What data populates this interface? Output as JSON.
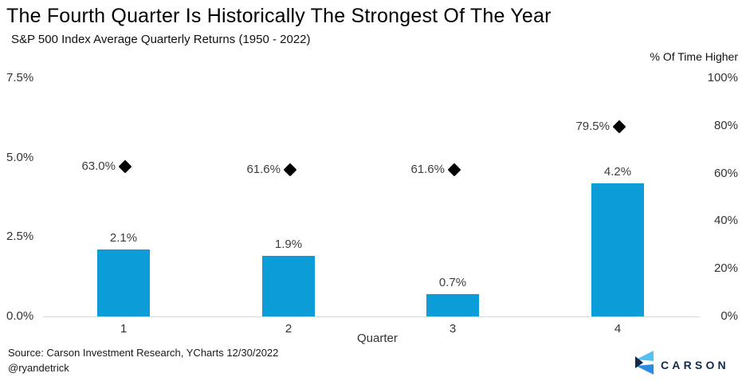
{
  "header": {
    "title": "The Fourth Quarter Is Historically The Strongest Of The Year",
    "subtitle": "S&P 500 Index Average Quarterly Returns (1950 - 2022)"
  },
  "chart_data": {
    "type": "bar",
    "title": "The Fourth Quarter Is Historically The Strongest Of The Year",
    "subtitle": "S&P 500 Index Average Quarterly Returns (1950 - 2022)",
    "categories": [
      "1",
      "2",
      "3",
      "4"
    ],
    "xlabel": "Quarter",
    "series": [
      {
        "name": "Average quarterly return",
        "type": "bar",
        "axis": "left",
        "values": [
          2.1,
          1.9,
          0.7,
          4.2
        ],
        "labels": [
          "2.1%",
          "1.9%",
          "0.7%",
          "4.2%"
        ]
      },
      {
        "name": "% Of Time Higher",
        "type": "scatter",
        "marker": "diamond",
        "axis": "right",
        "values": [
          63.0,
          61.6,
          61.6,
          79.5
        ],
        "labels": [
          "63.0%",
          "61.6%",
          "61.6%",
          "79.5%"
        ]
      }
    ],
    "left_axis": {
      "ticks": [
        "7.5%",
        "5.0%",
        "2.5%",
        "0.0%"
      ],
      "tick_values": [
        7.5,
        5.0,
        2.5,
        0.0
      ],
      "range": [
        0,
        7.5
      ]
    },
    "right_axis": {
      "label": "% Of Time Higher",
      "ticks": [
        "100%",
        "80%",
        "60%",
        "40%",
        "20%",
        "0%"
      ],
      "tick_values": [
        100,
        80,
        60,
        40,
        20,
        0
      ],
      "range": [
        0,
        100
      ]
    },
    "grid": "zero-baseline-only",
    "legend": "none",
    "colors": {
      "bar": "#0c9cd8",
      "marker": "#000000",
      "baseline": "#d9d9d9"
    }
  },
  "footer": {
    "source_line1": "Source: Carson Investment Research, YCharts 12/30/2022",
    "source_line2": "@ryandetrick",
    "logo_text": "CARSON",
    "logo_colors": {
      "light": "#55c1f0",
      "mid": "#2a8ce3",
      "navy": "#13294b"
    }
  }
}
